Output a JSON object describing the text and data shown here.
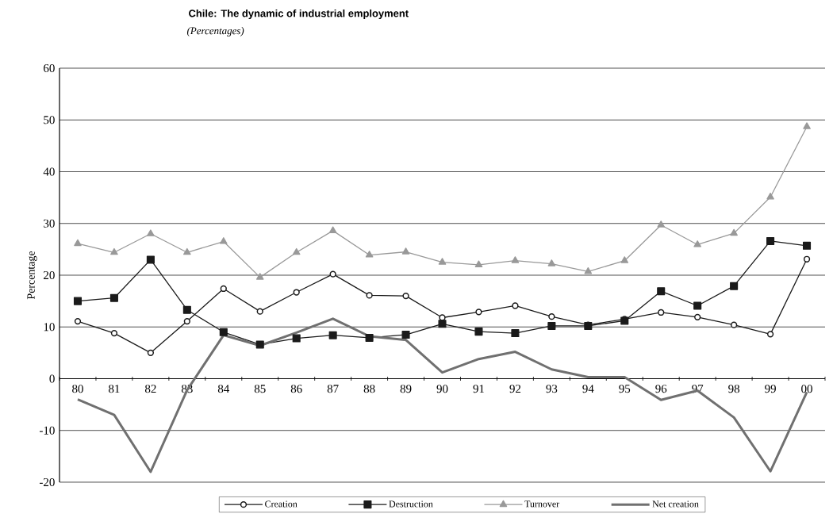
{
  "chart_data": {
    "type": "line",
    "title": "Chile: The dynamic of industrial employment",
    "subtitle": "(Percentages)",
    "ylabel": "Percentage",
    "categories": [
      "80",
      "81",
      "82",
      "83",
      "84",
      "85",
      "86",
      "87",
      "88",
      "89",
      "90",
      "91",
      "92",
      "93",
      "94",
      "95",
      "96",
      "97",
      "98",
      "99",
      "00"
    ],
    "series": [
      {
        "name": "Creation",
        "color": "#1a1a1a",
        "marker": "circle",
        "values": [
          11.1,
          8.8,
          5.0,
          11.1,
          17.4,
          13.0,
          16.7,
          20.2,
          16.1,
          16.0,
          11.8,
          12.9,
          14.1,
          12.0,
          10.4,
          11.5,
          12.8,
          11.9,
          10.4,
          8.6,
          23.1
        ]
      },
      {
        "name": "Destruction",
        "color": "#1a1a1a",
        "marker": "square",
        "values": [
          15.0,
          15.6,
          23.0,
          13.3,
          9.0,
          6.6,
          7.8,
          8.4,
          7.9,
          8.5,
          10.6,
          9.1,
          8.8,
          10.2,
          10.2,
          11.2,
          16.9,
          14.1,
          17.9,
          26.6,
          25.7
        ]
      },
      {
        "name": "Turnover",
        "color": "#999999",
        "marker": "triangle",
        "values": [
          26.1,
          24.4,
          28.0,
          24.4,
          26.5,
          19.6,
          24.4,
          28.6,
          23.9,
          24.5,
          22.5,
          22.0,
          22.8,
          22.2,
          20.7,
          22.8,
          29.7,
          25.9,
          28.1,
          35.1,
          48.7
        ]
      },
      {
        "name": "Net creation",
        "color": "#707070",
        "marker": "none",
        "values": [
          -4.0,
          -7.0,
          -18.0,
          -2.2,
          8.4,
          6.4,
          8.9,
          11.6,
          8.2,
          7.5,
          1.2,
          3.8,
          5.2,
          1.8,
          0.3,
          0.3,
          -4.1,
          -2.3,
          -7.5,
          -17.9,
          -2.6
        ]
      }
    ],
    "ylim": [
      -20,
      60
    ],
    "yticks": [
      -20,
      -10,
      0,
      10,
      20,
      30,
      40,
      50,
      60
    ],
    "grid": "y",
    "legend": "bottom",
    "line_style": "solid"
  }
}
